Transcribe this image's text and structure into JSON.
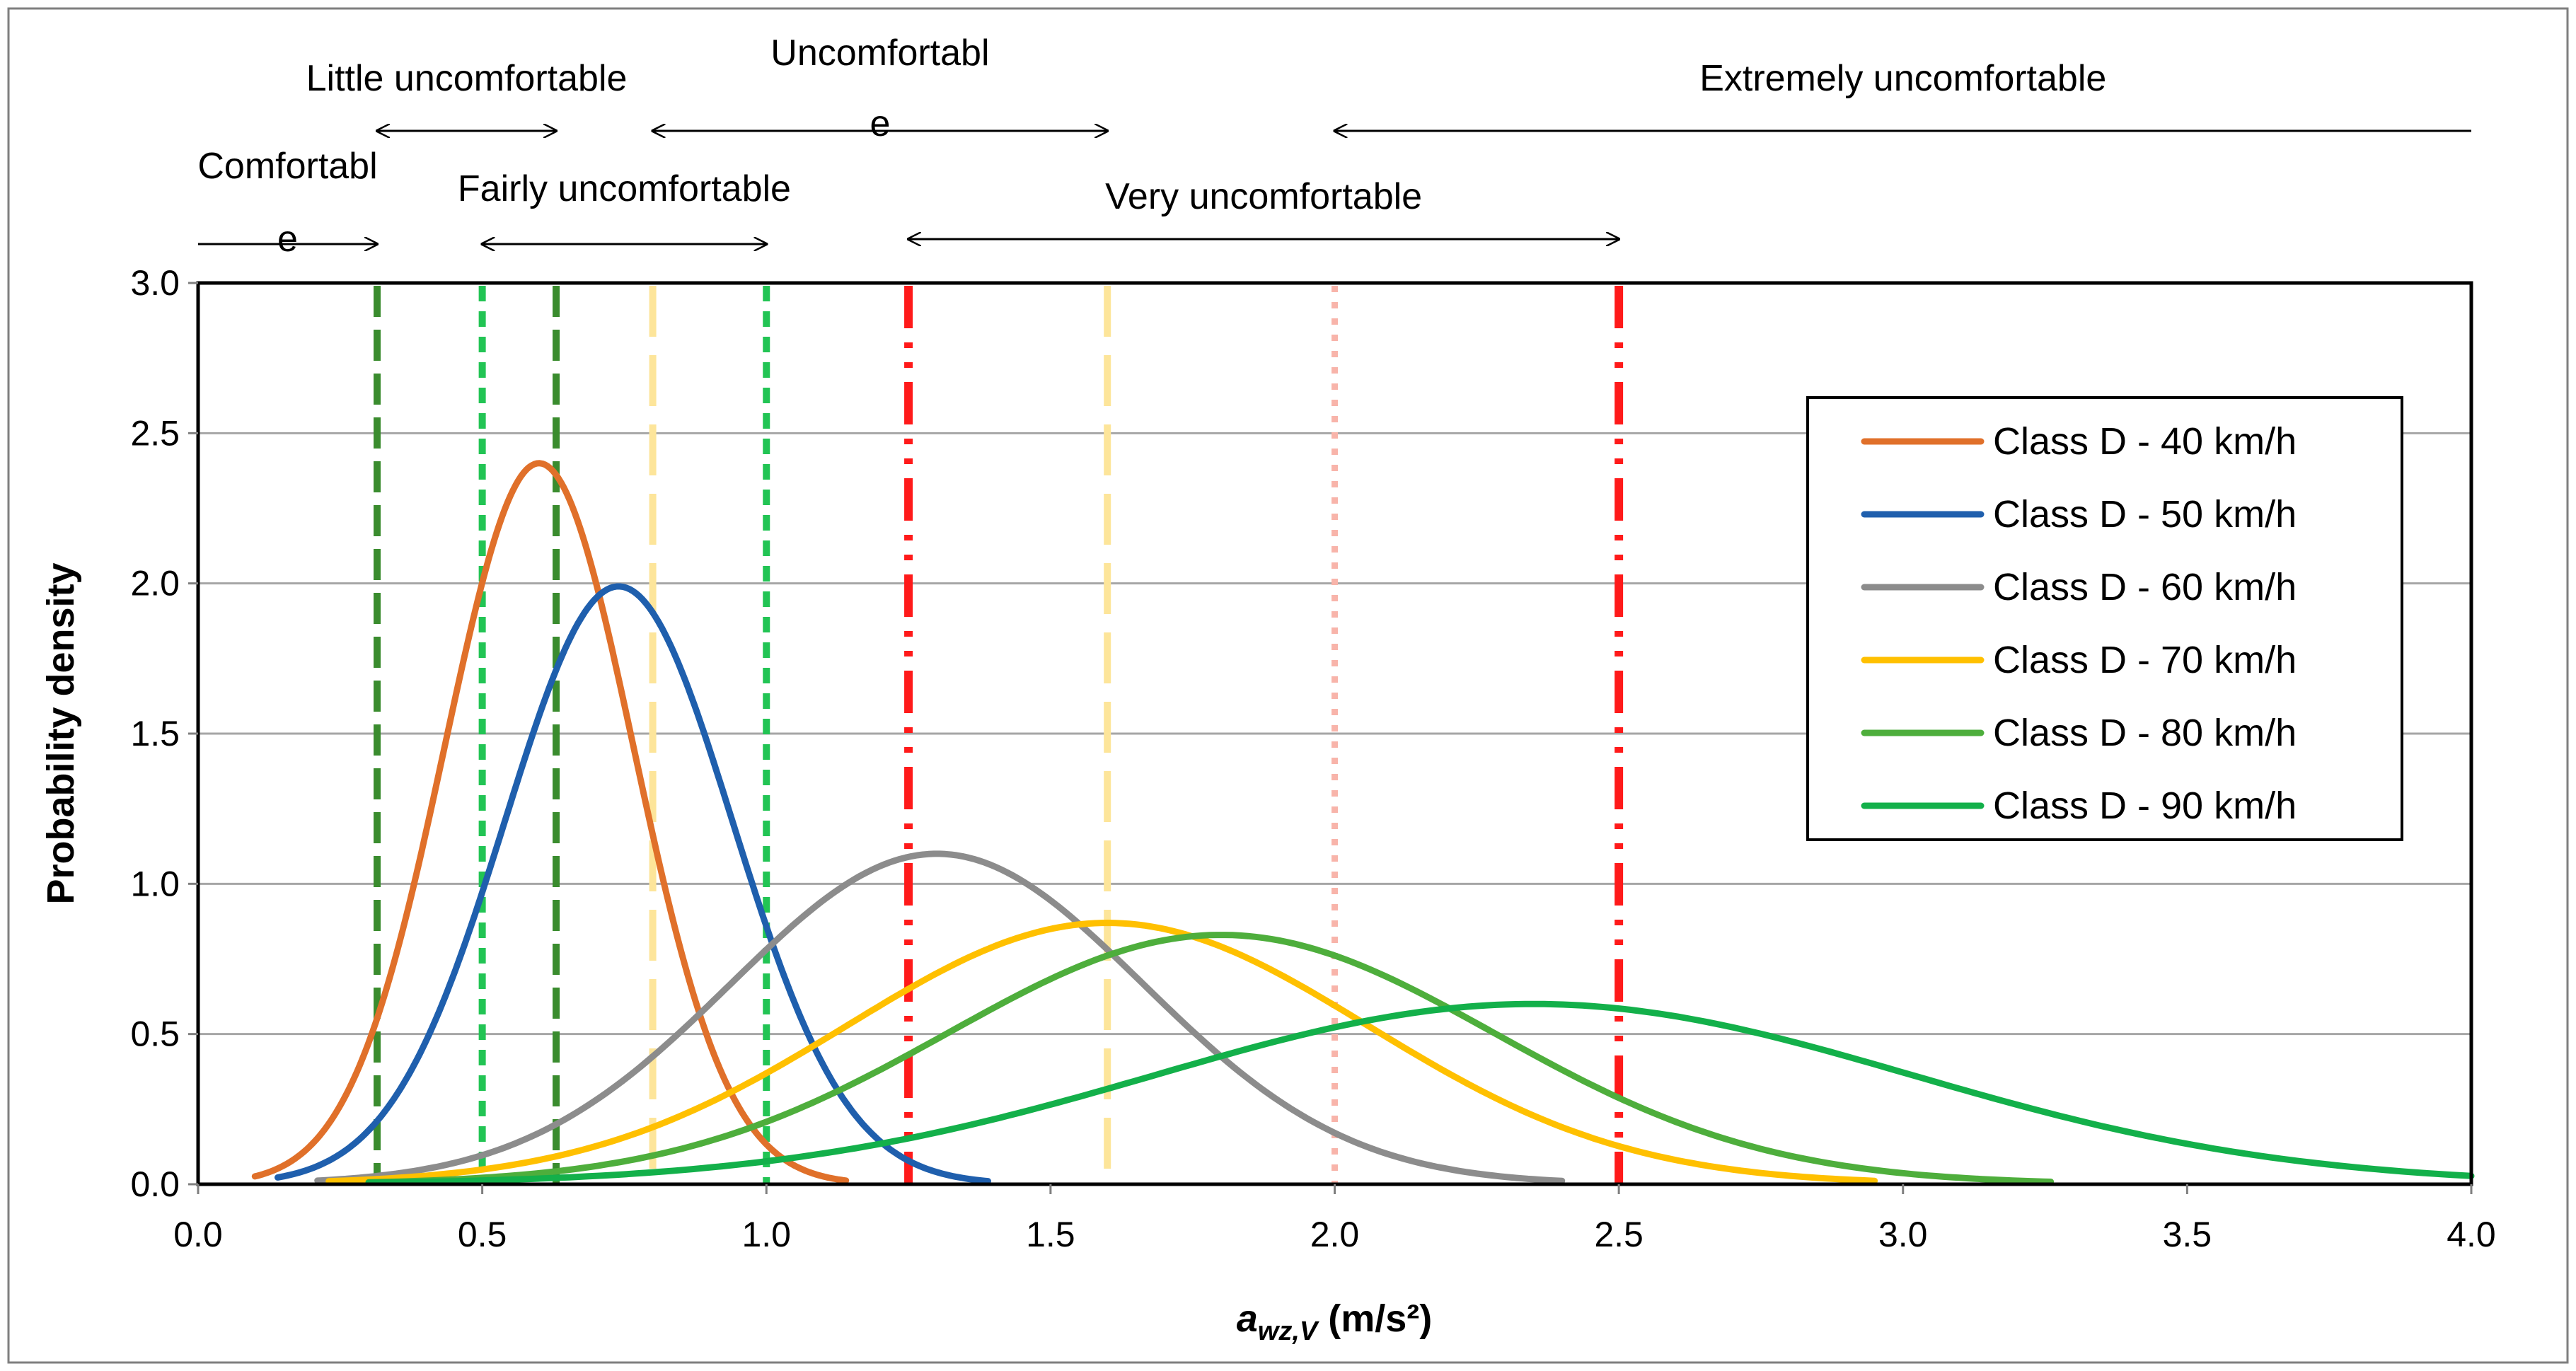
{
  "chart_data": {
    "type": "line",
    "xlabel_main": "a",
    "xlabel_sub": "wz,V",
    "xlabel_unit": " (m/s²)",
    "ylabel": "Probability density",
    "xlim": [
      0,
      4
    ],
    "ylim": [
      0,
      3
    ],
    "x_ticks": [
      0,
      0.5,
      1,
      1.5,
      2,
      2.5,
      3,
      3.5,
      4
    ],
    "x_tick_labels": [
      "0.0",
      "0.5",
      "1.0",
      "1.5",
      "2.0",
      "2.5",
      "3.0",
      "3.5",
      "4.0"
    ],
    "y_ticks": [
      0,
      0.5,
      1,
      1.5,
      2,
      2.5,
      3
    ],
    "y_tick_labels": [
      "0.0",
      "0.5",
      "1.0",
      "1.5",
      "2.0",
      "2.5",
      "3.0"
    ],
    "grid": "horizontal",
    "legend_position": "right",
    "series": [
      {
        "name": "Class D - 40 km/h",
        "color": "#E0702A",
        "mean": 0.6,
        "peak": 2.4,
        "xmin": 0.1,
        "xmax": 1.14
      },
      {
        "name": "Class D - 50 km/h",
        "color": "#1F5FAD",
        "mean": 0.74,
        "peak": 1.99,
        "xmin": 0.14,
        "xmax": 1.39
      },
      {
        "name": "Class D - 60 km/h",
        "color": "#8C8C8C",
        "mean": 1.3,
        "peak": 1.1,
        "xmin": 0.21,
        "xmax": 2.4
      },
      {
        "name": "Class D - 70 km/h",
        "color": "#FFC000",
        "mean": 1.6,
        "peak": 0.87,
        "xmin": 0.23,
        "xmax": 2.95
      },
      {
        "name": "Class D - 80 km/h",
        "color": "#4EAE3C",
        "mean": 1.8,
        "peak": 0.83,
        "xmin": 0.3,
        "xmax": 3.26
      },
      {
        "name": "Class D - 90 km/h",
        "color": "#13B04A",
        "mean": 2.35,
        "peak": 0.6,
        "xmin": 0.3,
        "xmax": 4.0
      }
    ],
    "threshold_lines": [
      {
        "x": 0.315,
        "color": "#3A8C2E",
        "style": "dash"
      },
      {
        "x": 0.5,
        "color": "#22C454",
        "style": "short-dash"
      },
      {
        "x": 0.63,
        "color": "#3A8C2E",
        "style": "dash"
      },
      {
        "x": 0.8,
        "color": "#FDE59A",
        "style": "long-dash"
      },
      {
        "x": 1.0,
        "color": "#22C454",
        "style": "short-dash"
      },
      {
        "x": 1.25,
        "color": "#FF1A1A",
        "style": "dash-dot-dot"
      },
      {
        "x": 1.6,
        "color": "#FDE59A",
        "style": "long-dash"
      },
      {
        "x": 2.0,
        "color": "#F8B4AA",
        "style": "dot"
      },
      {
        "x": 2.5,
        "color": "#FF1A1A",
        "style": "dash-dot-dot"
      }
    ],
    "comfort_ranges": [
      {
        "label_lines": [
          "Comfortabl",
          "e"
        ],
        "x_from": 0.0,
        "x_to": 0.315,
        "arrow_start": false,
        "arrow_end": true
      },
      {
        "label_lines": [
          "Little uncomfortable"
        ],
        "x_from": 0.315,
        "x_to": 0.63,
        "arrow_start": true,
        "arrow_end": true
      },
      {
        "label_lines": [
          "Fairly uncomfortable"
        ],
        "x_from": 0.5,
        "x_to": 1.0,
        "arrow_start": true,
        "arrow_end": true
      },
      {
        "label_lines": [
          "Uncomfortabl",
          "e"
        ],
        "x_from": 0.8,
        "x_to": 1.6,
        "arrow_start": true,
        "arrow_end": true
      },
      {
        "label_lines": [
          "Very uncomfortable"
        ],
        "x_from": 1.25,
        "x_to": 2.5,
        "arrow_start": true,
        "arrow_end": true
      },
      {
        "label_lines": [
          "Extremely uncomfortable"
        ],
        "x_from": 2.0,
        "x_to": 4.0,
        "arrow_start": true,
        "arrow_end": false
      }
    ]
  }
}
